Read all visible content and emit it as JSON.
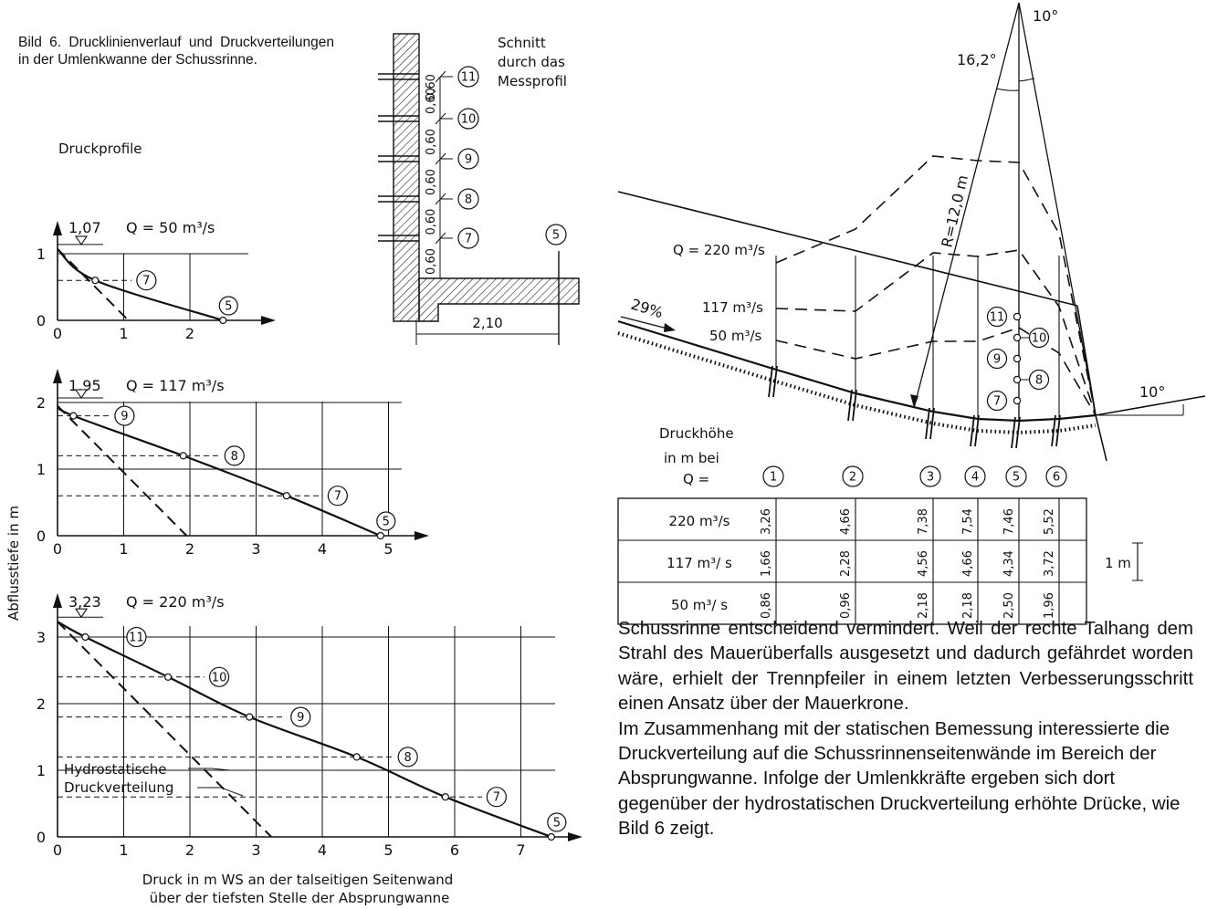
{
  "caption": "Bild 6. Drucklinienverlauf und Druckverteilungen in der Umlenkwanne der Schussrinne.",
  "left_title": "Druckprofile",
  "y_axis_label": "Abflusstiefe in m",
  "x_axis_label_1": "Druck in m WS an der talseitigen Seitenwand",
  "x_axis_label_2": "über der tiefsten Stelle der Absprungwanne",
  "hydrostatic_label_1": "Hydrostatische",
  "hydrostatic_label_2": "Druckverteilung",
  "section_title_1": "Schnitt",
  "section_title_2": "durch das",
  "section_title_3": "Messprofil",
  "section_spacing": [
    "0,60",
    "0,60",
    "0,60",
    "0,60",
    "0,60",
    "0,60"
  ],
  "section_width": "2,10",
  "chart_data": [
    {
      "type": "line",
      "header": "Q = 50 m³/s",
      "surface_label": "1,07",
      "x_ticks": [
        "0",
        "1",
        "2"
      ],
      "y_ticks": [
        "0",
        "1"
      ],
      "xlim": [
        0,
        3
      ],
      "ylim": [
        0,
        1.07
      ],
      "series": [
        {
          "values": [
            [
              0,
              1.07
            ],
            [
              0.57,
              0.6
            ],
            [
              2.5,
              0.0
            ]
          ],
          "point_labels": [
            "",
            "7",
            "5"
          ]
        },
        {
          "values": [
            [
              0,
              1.07
            ],
            [
              1.07,
              0.0
            ]
          ],
          "style": "dashed"
        }
      ]
    },
    {
      "type": "line",
      "header": "Q = 117 m³/s",
      "surface_label": "1,95",
      "x_ticks": [
        "0",
        "1",
        "2",
        "3",
        "4",
        "5"
      ],
      "y_ticks": [
        "0",
        "1",
        "2"
      ],
      "xlim": [
        0,
        5.5
      ],
      "ylim": [
        0,
        2
      ],
      "series": [
        {
          "values": [
            [
              0,
              1.95
            ],
            [
              0.24,
              1.8
            ],
            [
              1.9,
              1.2
            ],
            [
              3.46,
              0.6
            ],
            [
              4.88,
              0.0
            ]
          ],
          "point_labels": [
            "",
            "9",
            "8",
            "7",
            "5"
          ]
        },
        {
          "values": [
            [
              0,
              1.95
            ],
            [
              1.95,
              0.0
            ]
          ],
          "style": "dashed"
        }
      ]
    },
    {
      "type": "line",
      "header": "Q = 220 m³/s",
      "surface_label": "3,23",
      "x_ticks": [
        "0",
        "1",
        "2",
        "3",
        "4",
        "5",
        "6",
        "7"
      ],
      "y_ticks": [
        "0",
        "1",
        "2",
        "3"
      ],
      "xlim": [
        0,
        7.7
      ],
      "ylim": [
        0,
        3.23
      ],
      "series": [
        {
          "values": [
            [
              0,
              3.23
            ],
            [
              0.42,
              3.0
            ],
            [
              1.67,
              2.4
            ],
            [
              2.9,
              1.8
            ],
            [
              4.52,
              1.2
            ],
            [
              5.86,
              0.6
            ],
            [
              7.46,
              0.0
            ]
          ],
          "point_labels": [
            "",
            "11",
            "10",
            "9",
            "8",
            "7",
            "5"
          ]
        },
        {
          "values": [
            [
              0,
              3.23
            ],
            [
              3.23,
              0.0
            ]
          ],
          "style": "dashed"
        }
      ]
    }
  ],
  "profile": {
    "angles": [
      "16,2°",
      "10°",
      "10°"
    ],
    "radius": "R=12,0 m",
    "slope": "29%",
    "q_labels": [
      "Q = 220 m³/s",
      "117 m³/s",
      "50 m³/s"
    ],
    "druckhohe_1": "Druckhöhe",
    "druckhohe_2": "in m bei",
    "druckhohe_3": "Q =",
    "columns": [
      "1",
      "2",
      "3",
      "4",
      "5",
      "6"
    ],
    "sensors": [
      "11",
      "10",
      "9",
      "8",
      "7"
    ],
    "scale_label": "1 m",
    "table": [
      {
        "q": "220 m³/s",
        "values": [
          "3,26",
          "4,66",
          "7,38",
          "7,54",
          "7,46",
          "5,52"
        ]
      },
      {
        "q": "117 m³/ s",
        "values": [
          "1,66",
          "2,28",
          "4,56",
          "4,66",
          "4,34",
          "3,72"
        ]
      },
      {
        "q": "50 m³/ s",
        "values": [
          "0,86",
          "0,96",
          "2,18",
          "2,18",
          "2,50",
          "1,96"
        ]
      }
    ]
  },
  "body_p1": "Schussrinne entscheidend vermindert. Weil der rechte Talhang dem Strahl des Mauerüberfalls ausgesetzt und dadurch gefährdet worden wäre, erhielt der Trennpfeiler in einem letzten Verbesserungsschritt einen Ansatz über der Mauerkrone.",
  "body_p2": "Im Zusammenhang mit der statischen Bemessung interessierte die Druckverteilung auf die Schussrinnenseitenwände im Bereich der Absprungwanne. Infolge der Umlenkkräfte ergeben sich dort gegenüber der hydrostatischen Druckverteilung erhöhte Drücke, wie Bild 6 zeigt."
}
